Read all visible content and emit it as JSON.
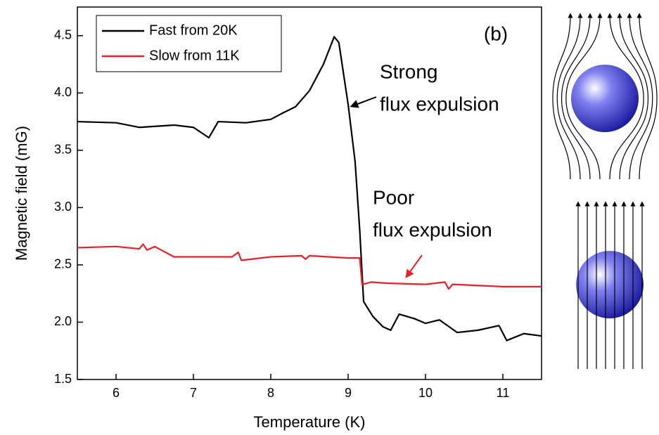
{
  "chart_data": {
    "type": "line",
    "x_label": "Temperature (K)",
    "y_label": "Magnetic field (mG)",
    "panel_label": "(b)",
    "xlim": [
      5.5,
      11.5
    ],
    "xticks": [
      6,
      7,
      8,
      9,
      10,
      11
    ],
    "ylim": [
      1.5,
      4.75
    ],
    "yticks": [
      1.5,
      {
        "value": 2,
        "label": "2.0"
      },
      2.5,
      {
        "value": 3,
        "label": "3.0"
      },
      3.5,
      {
        "value": 4,
        "label": "4.0"
      },
      4.5
    ],
    "legend": "upper left",
    "series": [
      {
        "name": "Fast from 20K",
        "color": "#000000",
        "x": [
          5.5,
          6.0,
          6.3,
          6.75,
          7.0,
          7.2,
          7.32,
          7.68,
          8.0,
          8.14,
          8.32,
          8.5,
          8.68,
          8.82,
          8.88,
          9.0,
          9.09,
          9.15,
          9.2,
          9.32,
          9.45,
          9.55,
          9.66,
          9.86,
          10.0,
          10.18,
          10.41,
          10.68,
          10.95,
          11.05,
          11.27,
          11.5
        ],
        "values": [
          3.75,
          3.74,
          3.7,
          3.72,
          3.7,
          3.61,
          3.75,
          3.74,
          3.77,
          3.82,
          3.88,
          4.02,
          4.25,
          4.49,
          4.44,
          3.9,
          3.4,
          2.8,
          2.18,
          2.05,
          1.96,
          1.93,
          2.07,
          2.03,
          1.99,
          2.02,
          1.91,
          1.93,
          1.97,
          1.84,
          1.9,
          1.88
        ]
      },
      {
        "name": "Slow from 11K",
        "color": "#e8202a",
        "x": [
          5.5,
          6.0,
          6.3,
          6.35,
          6.4,
          6.5,
          6.75,
          7.5,
          7.58,
          7.62,
          8.0,
          8.4,
          8.45,
          8.5,
          9.0,
          9.15,
          9.18,
          9.3,
          9.5,
          10.0,
          10.25,
          10.3,
          10.35,
          11.0,
          11.5
        ],
        "values": [
          2.65,
          2.66,
          2.64,
          2.68,
          2.63,
          2.66,
          2.57,
          2.57,
          2.61,
          2.54,
          2.57,
          2.58,
          2.55,
          2.58,
          2.56,
          2.56,
          2.33,
          2.35,
          2.34,
          2.33,
          2.35,
          2.29,
          2.33,
          2.31,
          2.31
        ]
      }
    ],
    "annotations": [
      {
        "lines": [
          "Strong",
          "flux expulsion"
        ],
        "color": "#000000"
      },
      {
        "lines": [
          "Poor",
          "flux expulsion"
        ],
        "color": "#e8202a"
      }
    ]
  }
}
